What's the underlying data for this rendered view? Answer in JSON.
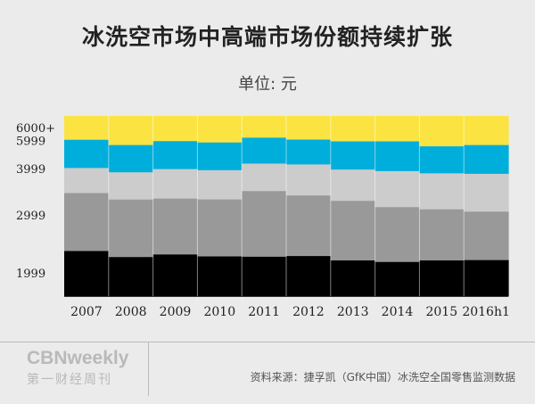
{
  "header": {
    "title": "冰洗空市场中高端市场份额持续扩张",
    "unit": "单位: 元"
  },
  "footer": {
    "brand": "CBNweekly",
    "brand_sub": "第一财经周刊",
    "source": "资料来源：捷孚凯（GfK中国）冰洗空全国零售监测数据"
  },
  "chart_data": {
    "type": "area",
    "stacked": true,
    "normalized": true,
    "categories": [
      "2007",
      "2008",
      "2009",
      "2010",
      "2011",
      "2012",
      "2013",
      "2014",
      "2015",
      "2016h1"
    ],
    "y_tick_labels": [
      "6000+",
      "5999",
      "3999",
      "2999",
      "1999"
    ],
    "ylim": [
      0,
      100
    ],
    "grid": false,
    "legend": "none",
    "series": [
      {
        "color": "#000000",
        "values": [
          29,
          26,
          27,
          26,
          26,
          26,
          23,
          22,
          24,
          24
        ]
      },
      {
        "color": "#999999",
        "values": [
          37,
          38,
          36,
          37,
          43,
          39,
          38,
          35,
          34,
          32
        ]
      },
      {
        "color": "#cccccc",
        "values": [
          16,
          18,
          19,
          19,
          18,
          20,
          20,
          23,
          24,
          25
        ]
      },
      {
        "color": "#00aedb",
        "values": [
          18,
          18,
          18,
          18,
          17,
          16,
          18,
          19,
          18,
          19
        ]
      },
      {
        "color": "#fbe442",
        "values": [
          15,
          19,
          16,
          17,
          14,
          15,
          16,
          16,
          20,
          19
        ]
      }
    ]
  }
}
